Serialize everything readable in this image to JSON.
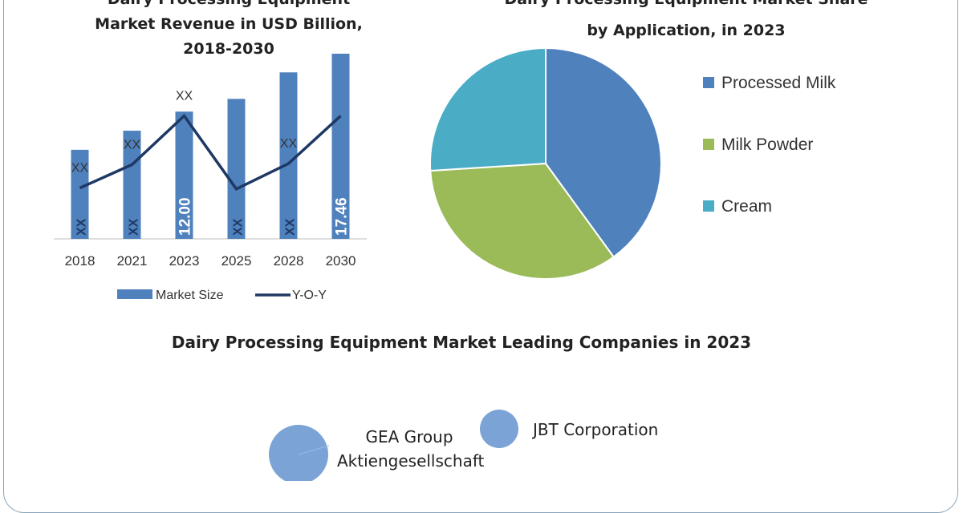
{
  "chart_data": [
    {
      "type": "bar",
      "title_lines": [
        "Dairy Processing Equipment",
        "Market Revenue in USD Billion,",
        "2018-2030"
      ],
      "categories": [
        "2018",
        "2021",
        "2023",
        "2025",
        "2028",
        "2030"
      ],
      "ylim": [
        0,
        17.46
      ],
      "series": [
        {
          "name": "Market Size",
          "type": "bar",
          "color": "#4f81bd",
          "values": [
            8.4,
            10.2,
            12.0,
            13.2,
            15.7,
            17.46
          ],
          "data_labels": [
            "XX",
            "XX",
            "12.00",
            "XX",
            "XX",
            "17.46"
          ]
        },
        {
          "name": "Y-O-Y",
          "type": "line",
          "color": "#1f3864",
          "values": [
            4.8,
            7.0,
            11.6,
            4.7,
            7.1,
            11.6
          ],
          "data_labels": [
            "XX",
            "XX",
            "XX",
            "",
            "XX",
            ""
          ]
        }
      ],
      "grid": false,
      "legend": "bottom"
    },
    {
      "type": "pie",
      "title_lines": [
        "Dairy Processing Equipment Market Share",
        "by Application, in 2023"
      ],
      "slices": [
        {
          "label": "Processed Milk",
          "value": 40,
          "color": "#4f81bd"
        },
        {
          "label": "Milk Powder",
          "value": 34,
          "color": "#9bbb59"
        },
        {
          "label": "Cream",
          "value": 26,
          "color": "#4bacc6"
        }
      ],
      "legend": "right"
    }
  ],
  "companies_section": {
    "title": "Dairy Processing Equipment  Market Leading Companies in 2023",
    "bubble_color": "#7ba3d6",
    "companies": [
      {
        "label_lines": [
          "GEA Group",
          "Aktiengesellschaft"
        ]
      },
      {
        "label_lines": [
          "JBT Corporation"
        ]
      }
    ]
  }
}
